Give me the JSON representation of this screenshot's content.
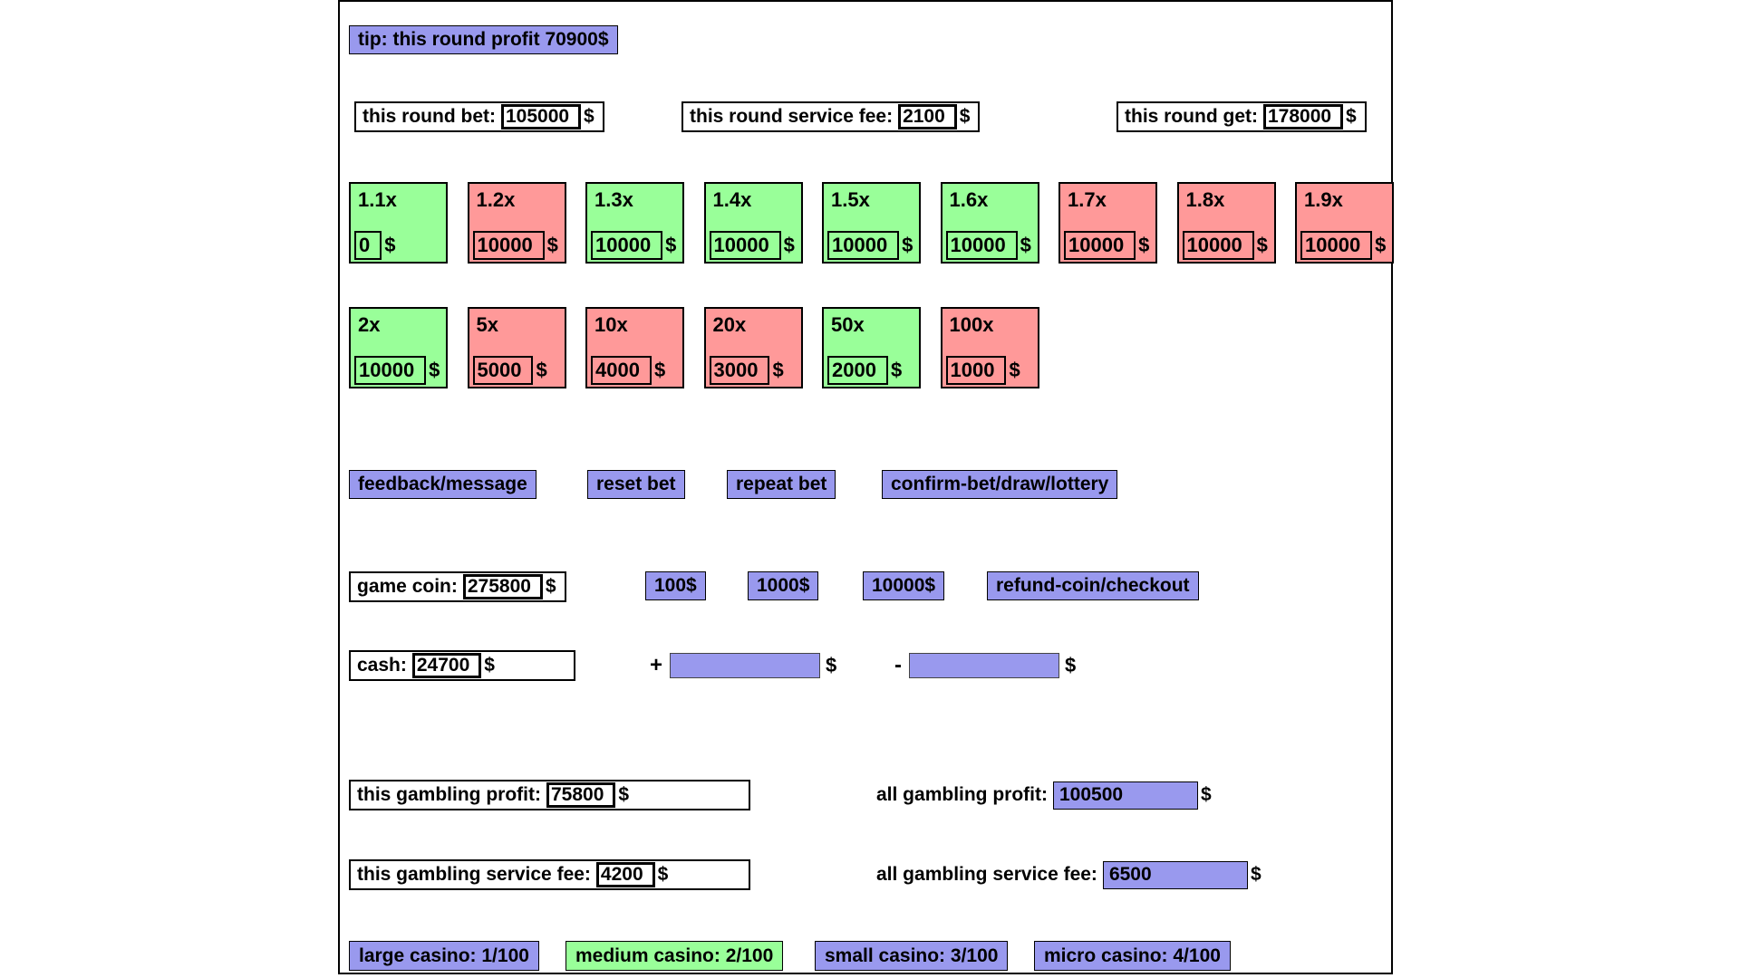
{
  "colors": {
    "purple": "#9999ee",
    "green": "#99ff99",
    "red": "#ff9999"
  },
  "dollar": "$",
  "tip": {
    "label": "tip: this round profit 70900$"
  },
  "round": {
    "bet": {
      "label": "this round bet:",
      "value": "105000"
    },
    "service_fee": {
      "label": "this round service fee:",
      "value": "2100"
    },
    "get": {
      "label": "this round get:",
      "value": "178000"
    }
  },
  "mult1": [
    {
      "label": "1.1x",
      "value": "0",
      "color": "green"
    },
    {
      "label": "1.2x",
      "value": "10000",
      "color": "red"
    },
    {
      "label": "1.3x",
      "value": "10000",
      "color": "green"
    },
    {
      "label": "1.4x",
      "value": "10000",
      "color": "green"
    },
    {
      "label": "1.5x",
      "value": "10000",
      "color": "green"
    },
    {
      "label": "1.6x",
      "value": "10000",
      "color": "green"
    },
    {
      "label": "1.7x",
      "value": "10000",
      "color": "red"
    },
    {
      "label": "1.8x",
      "value": "10000",
      "color": "red"
    },
    {
      "label": "1.9x",
      "value": "10000",
      "color": "red"
    }
  ],
  "mult2": [
    {
      "label": "2x",
      "value": "10000",
      "color": "green"
    },
    {
      "label": "5x",
      "value": "5000",
      "color": "red"
    },
    {
      "label": "10x",
      "value": "4000",
      "color": "red"
    },
    {
      "label": "20x",
      "value": "3000",
      "color": "red"
    },
    {
      "label": "50x",
      "value": "2000",
      "color": "green"
    },
    {
      "label": "100x",
      "value": "1000",
      "color": "red"
    }
  ],
  "buttons": {
    "feedback": "feedback/message",
    "reset": "reset bet",
    "repeat": "repeat bet",
    "confirm": "confirm-bet/draw/lottery"
  },
  "coin": {
    "label": "game coin:",
    "value": "275800",
    "add_buttons": [
      "100$",
      "1000$",
      "10000$"
    ],
    "refund": "refund-coin/checkout"
  },
  "cash": {
    "label": "cash:",
    "value": "24700",
    "plus_sign": "+",
    "minus_sign": "-",
    "plus_value": "",
    "minus_value": ""
  },
  "gambling": {
    "this_profit": {
      "label": "this gambling profit:",
      "value": "75800"
    },
    "all_profit": {
      "label": "all gambling profit:",
      "value": "100500"
    },
    "this_fee": {
      "label": "this gambling service fee:",
      "value": "4200"
    },
    "all_fee": {
      "label": "all gambling service fee:",
      "value": "6500"
    }
  },
  "tabs": [
    {
      "label": "large casino: 1/100",
      "color": "purple"
    },
    {
      "label": "medium casino: 2/100",
      "color": "green"
    },
    {
      "label": "small casino: 3/100",
      "color": "purple"
    },
    {
      "label": "micro casino: 4/100",
      "color": "purple"
    }
  ]
}
